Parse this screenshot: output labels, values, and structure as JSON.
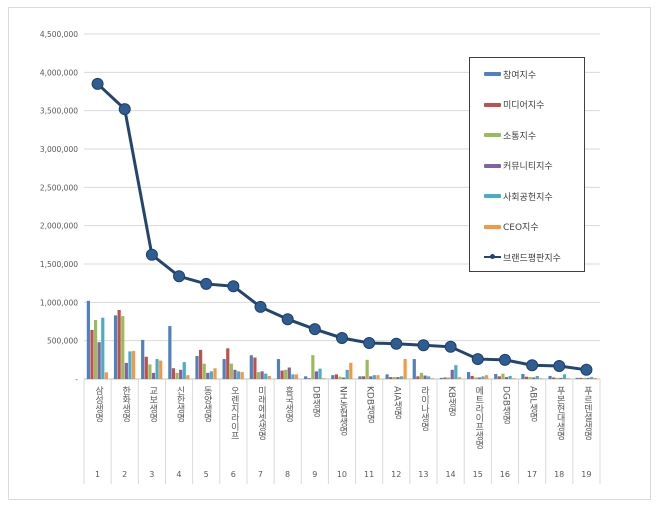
{
  "chart_data": {
    "type": "bar+line",
    "title": "",
    "xlabel": "",
    "ylabel": "",
    "ylim": [
      0,
      4500000
    ],
    "yticks": [
      "-",
      "500,000",
      "1,000,000",
      "1,500,000",
      "2,000,000",
      "2,500,000",
      "3,000,000",
      "3,500,000",
      "4,000,000",
      "4,500,000"
    ],
    "grid": true,
    "legend_position": "right",
    "categories": [
      "삼성생명",
      "한화생명",
      "교보생명",
      "신한생명",
      "동양생명",
      "오렌지라이프",
      "미래에셋생명",
      "흥국생명",
      "DB생명",
      "NH농협생명",
      "KDB생명",
      "AIA생명",
      "라이나생명",
      "KB생명",
      "메트라이프생명",
      "DGB생명",
      "ABL생명",
      "푸본현대생명",
      "푸르덴셜생명"
    ],
    "numbers": [
      "1",
      "2",
      "3",
      "4",
      "5",
      "6",
      "7",
      "8",
      "9",
      "10",
      "11",
      "12",
      "13",
      "14",
      "15",
      "16",
      "17",
      "18",
      "19"
    ],
    "series": [
      {
        "name": "참여지수",
        "type": "bar",
        "color": "#4f81bd",
        "values": [
          1020000,
          830000,
          510000,
          690000,
          300000,
          260000,
          310000,
          260000,
          35000,
          50000,
          35000,
          60000,
          260000,
          15000,
          90000,
          65000,
          65000,
          40000,
          15000
        ]
      },
      {
        "name": "미디어지수",
        "type": "bar",
        "color": "#c0504d",
        "values": [
          640000,
          900000,
          290000,
          140000,
          380000,
          400000,
          280000,
          110000,
          10000,
          60000,
          35000,
          25000,
          35000,
          20000,
          40000,
          35000,
          30000,
          20000,
          15000
        ]
      },
      {
        "name": "소통지수",
        "type": "bar",
        "color": "#9bbb59",
        "values": [
          770000,
          820000,
          190000,
          80000,
          200000,
          200000,
          90000,
          120000,
          310000,
          30000,
          250000,
          25000,
          80000,
          20000,
          20000,
          70000,
          25000,
          15000,
          15000
        ]
      },
      {
        "name": "커뮤니티지수",
        "type": "bar",
        "color": "#8064a2",
        "values": [
          480000,
          210000,
          80000,
          120000,
          80000,
          120000,
          100000,
          150000,
          100000,
          20000,
          35000,
          25000,
          45000,
          120000,
          20000,
          25000,
          20000,
          15000,
          15000
        ]
      },
      {
        "name": "사회공헌지수",
        "type": "bar",
        "color": "#4bacc6",
        "values": [
          800000,
          360000,
          260000,
          220000,
          100000,
          100000,
          70000,
          60000,
          135000,
          120000,
          50000,
          35000,
          35000,
          180000,
          35000,
          40000,
          40000,
          60000,
          25000
        ]
      },
      {
        "name": "CEO지수",
        "type": "bar",
        "color": "#f79646",
        "values": [
          87000,
          365000,
          240000,
          50000,
          140000,
          90000,
          40000,
          60000,
          10000,
          210000,
          50000,
          260000,
          10000,
          25000,
          50000,
          10000,
          10000,
          10000,
          15000
        ]
      },
      {
        "name": "브랜드평판지수",
        "type": "line",
        "color": "#24466e",
        "values": [
          3850000,
          3520000,
          1620000,
          1340000,
          1240000,
          1210000,
          940000,
          780000,
          650000,
          535000,
          470000,
          460000,
          440000,
          420000,
          260000,
          250000,
          180000,
          170000,
          120000
        ]
      }
    ]
  }
}
